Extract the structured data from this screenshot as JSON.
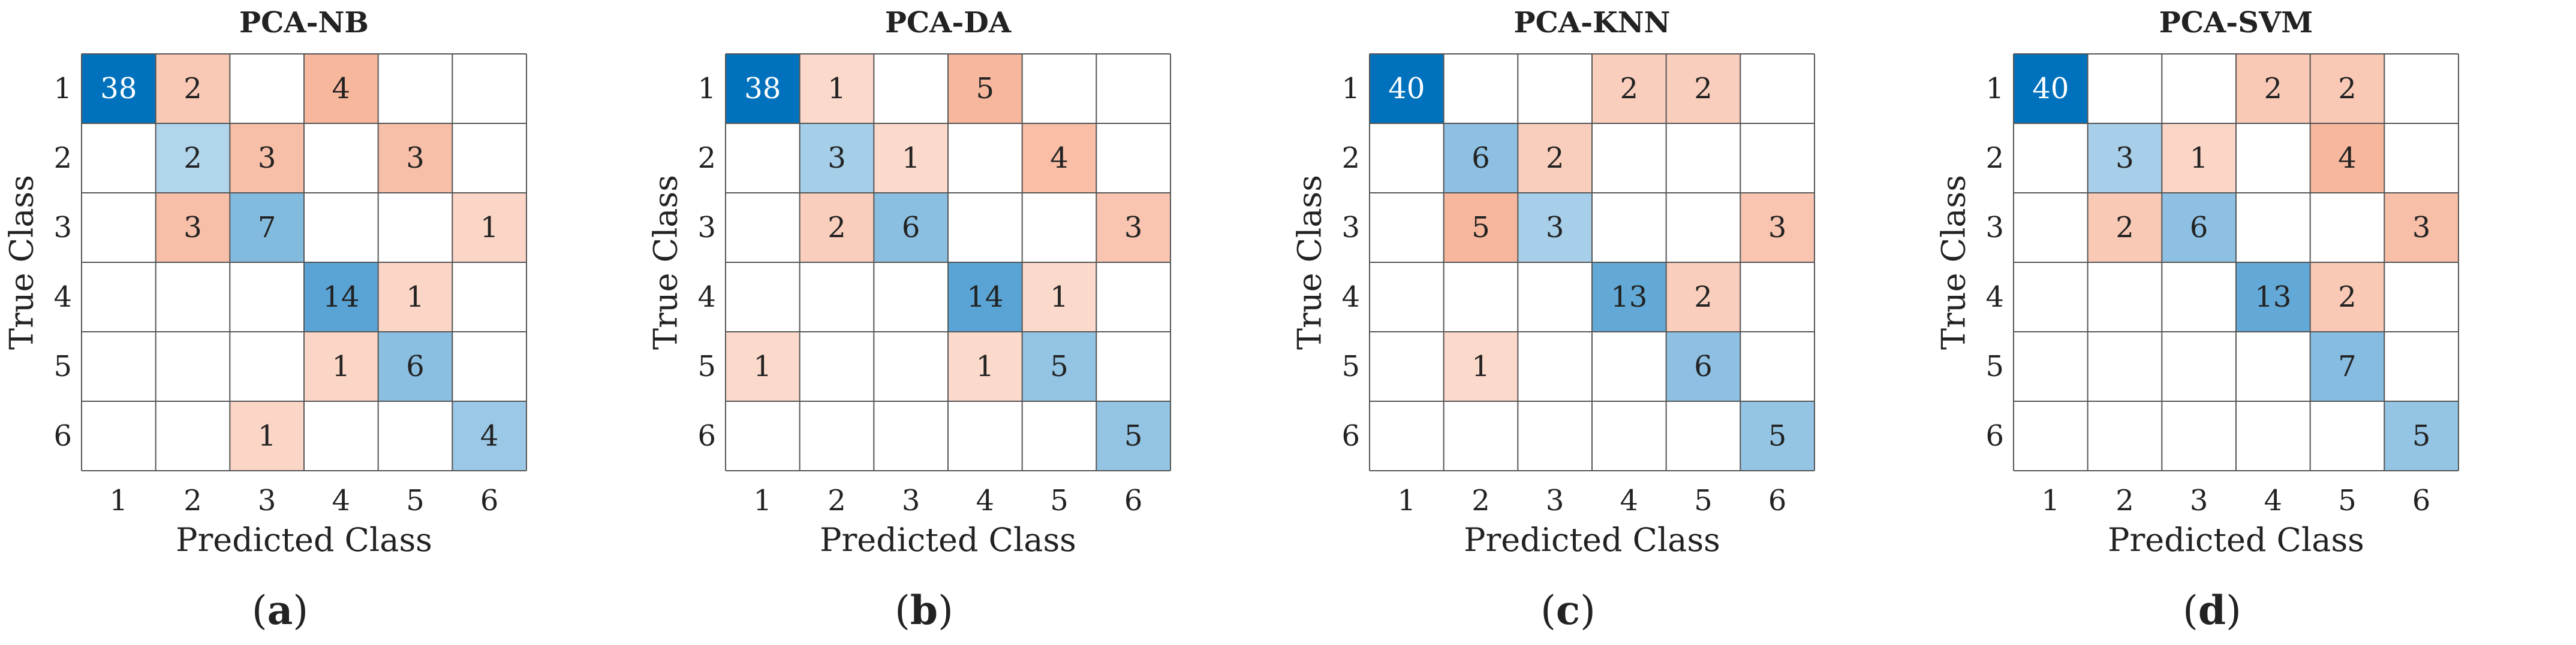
{
  "chart_data": [
    {
      "type": "heatmap",
      "title": "PCA-NB",
      "xlabel": "Predicted Class",
      "ylabel": "True Class",
      "caption": "a",
      "categories": [
        "1",
        "2",
        "3",
        "4",
        "5",
        "6"
      ],
      "matrix": [
        [
          38,
          2,
          null,
          4,
          null,
          null
        ],
        [
          null,
          2,
          3,
          null,
          3,
          null
        ],
        [
          null,
          3,
          7,
          null,
          null,
          1
        ],
        [
          null,
          null,
          null,
          14,
          1,
          null
        ],
        [
          null,
          null,
          null,
          1,
          6,
          null
        ],
        [
          null,
          null,
          1,
          null,
          null,
          4
        ]
      ]
    },
    {
      "type": "heatmap",
      "title": "PCA-DA",
      "xlabel": "Predicted Class",
      "ylabel": "True Class",
      "caption": "b",
      "categories": [
        "1",
        "2",
        "3",
        "4",
        "5",
        "6"
      ],
      "matrix": [
        [
          38,
          1,
          null,
          5,
          null,
          null
        ],
        [
          null,
          3,
          1,
          null,
          4,
          null
        ],
        [
          null,
          2,
          6,
          null,
          null,
          3
        ],
        [
          null,
          null,
          null,
          14,
          1,
          null
        ],
        [
          1,
          null,
          null,
          1,
          5,
          null
        ],
        [
          null,
          null,
          null,
          null,
          null,
          5
        ]
      ]
    },
    {
      "type": "heatmap",
      "title": "PCA-KNN",
      "xlabel": "Predicted Class",
      "ylabel": "True Class",
      "caption": "c",
      "categories": [
        "1",
        "2",
        "3",
        "4",
        "5",
        "6"
      ],
      "matrix": [
        [
          40,
          null,
          null,
          2,
          2,
          null
        ],
        [
          null,
          6,
          2,
          null,
          null,
          null
        ],
        [
          null,
          5,
          3,
          null,
          null,
          3
        ],
        [
          null,
          null,
          null,
          13,
          2,
          null
        ],
        [
          null,
          1,
          null,
          null,
          6,
          null
        ],
        [
          null,
          null,
          null,
          null,
          null,
          5
        ]
      ]
    },
    {
      "type": "heatmap",
      "title": "PCA-SVM",
      "xlabel": "Predicted Class",
      "ylabel": "True Class",
      "caption": "d",
      "categories": [
        "1",
        "2",
        "3",
        "4",
        "5",
        "6"
      ],
      "matrix": [
        [
          40,
          null,
          null,
          2,
          2,
          null
        ],
        [
          null,
          3,
          1,
          null,
          4,
          null
        ],
        [
          null,
          2,
          6,
          null,
          null,
          3
        ],
        [
          null,
          null,
          null,
          13,
          2,
          null
        ],
        [
          null,
          null,
          null,
          null,
          7,
          null
        ],
        [
          null,
          null,
          null,
          null,
          null,
          5
        ]
      ]
    }
  ],
  "colors": {
    "diag_dark": "#0072bd",
    "diag_light": "#e6f2f9",
    "off_dark": "#f7b79d",
    "off_light": "#fff5f1",
    "grid": "#555555",
    "text_dark": "#222222",
    "text_light": "#ffffff"
  }
}
